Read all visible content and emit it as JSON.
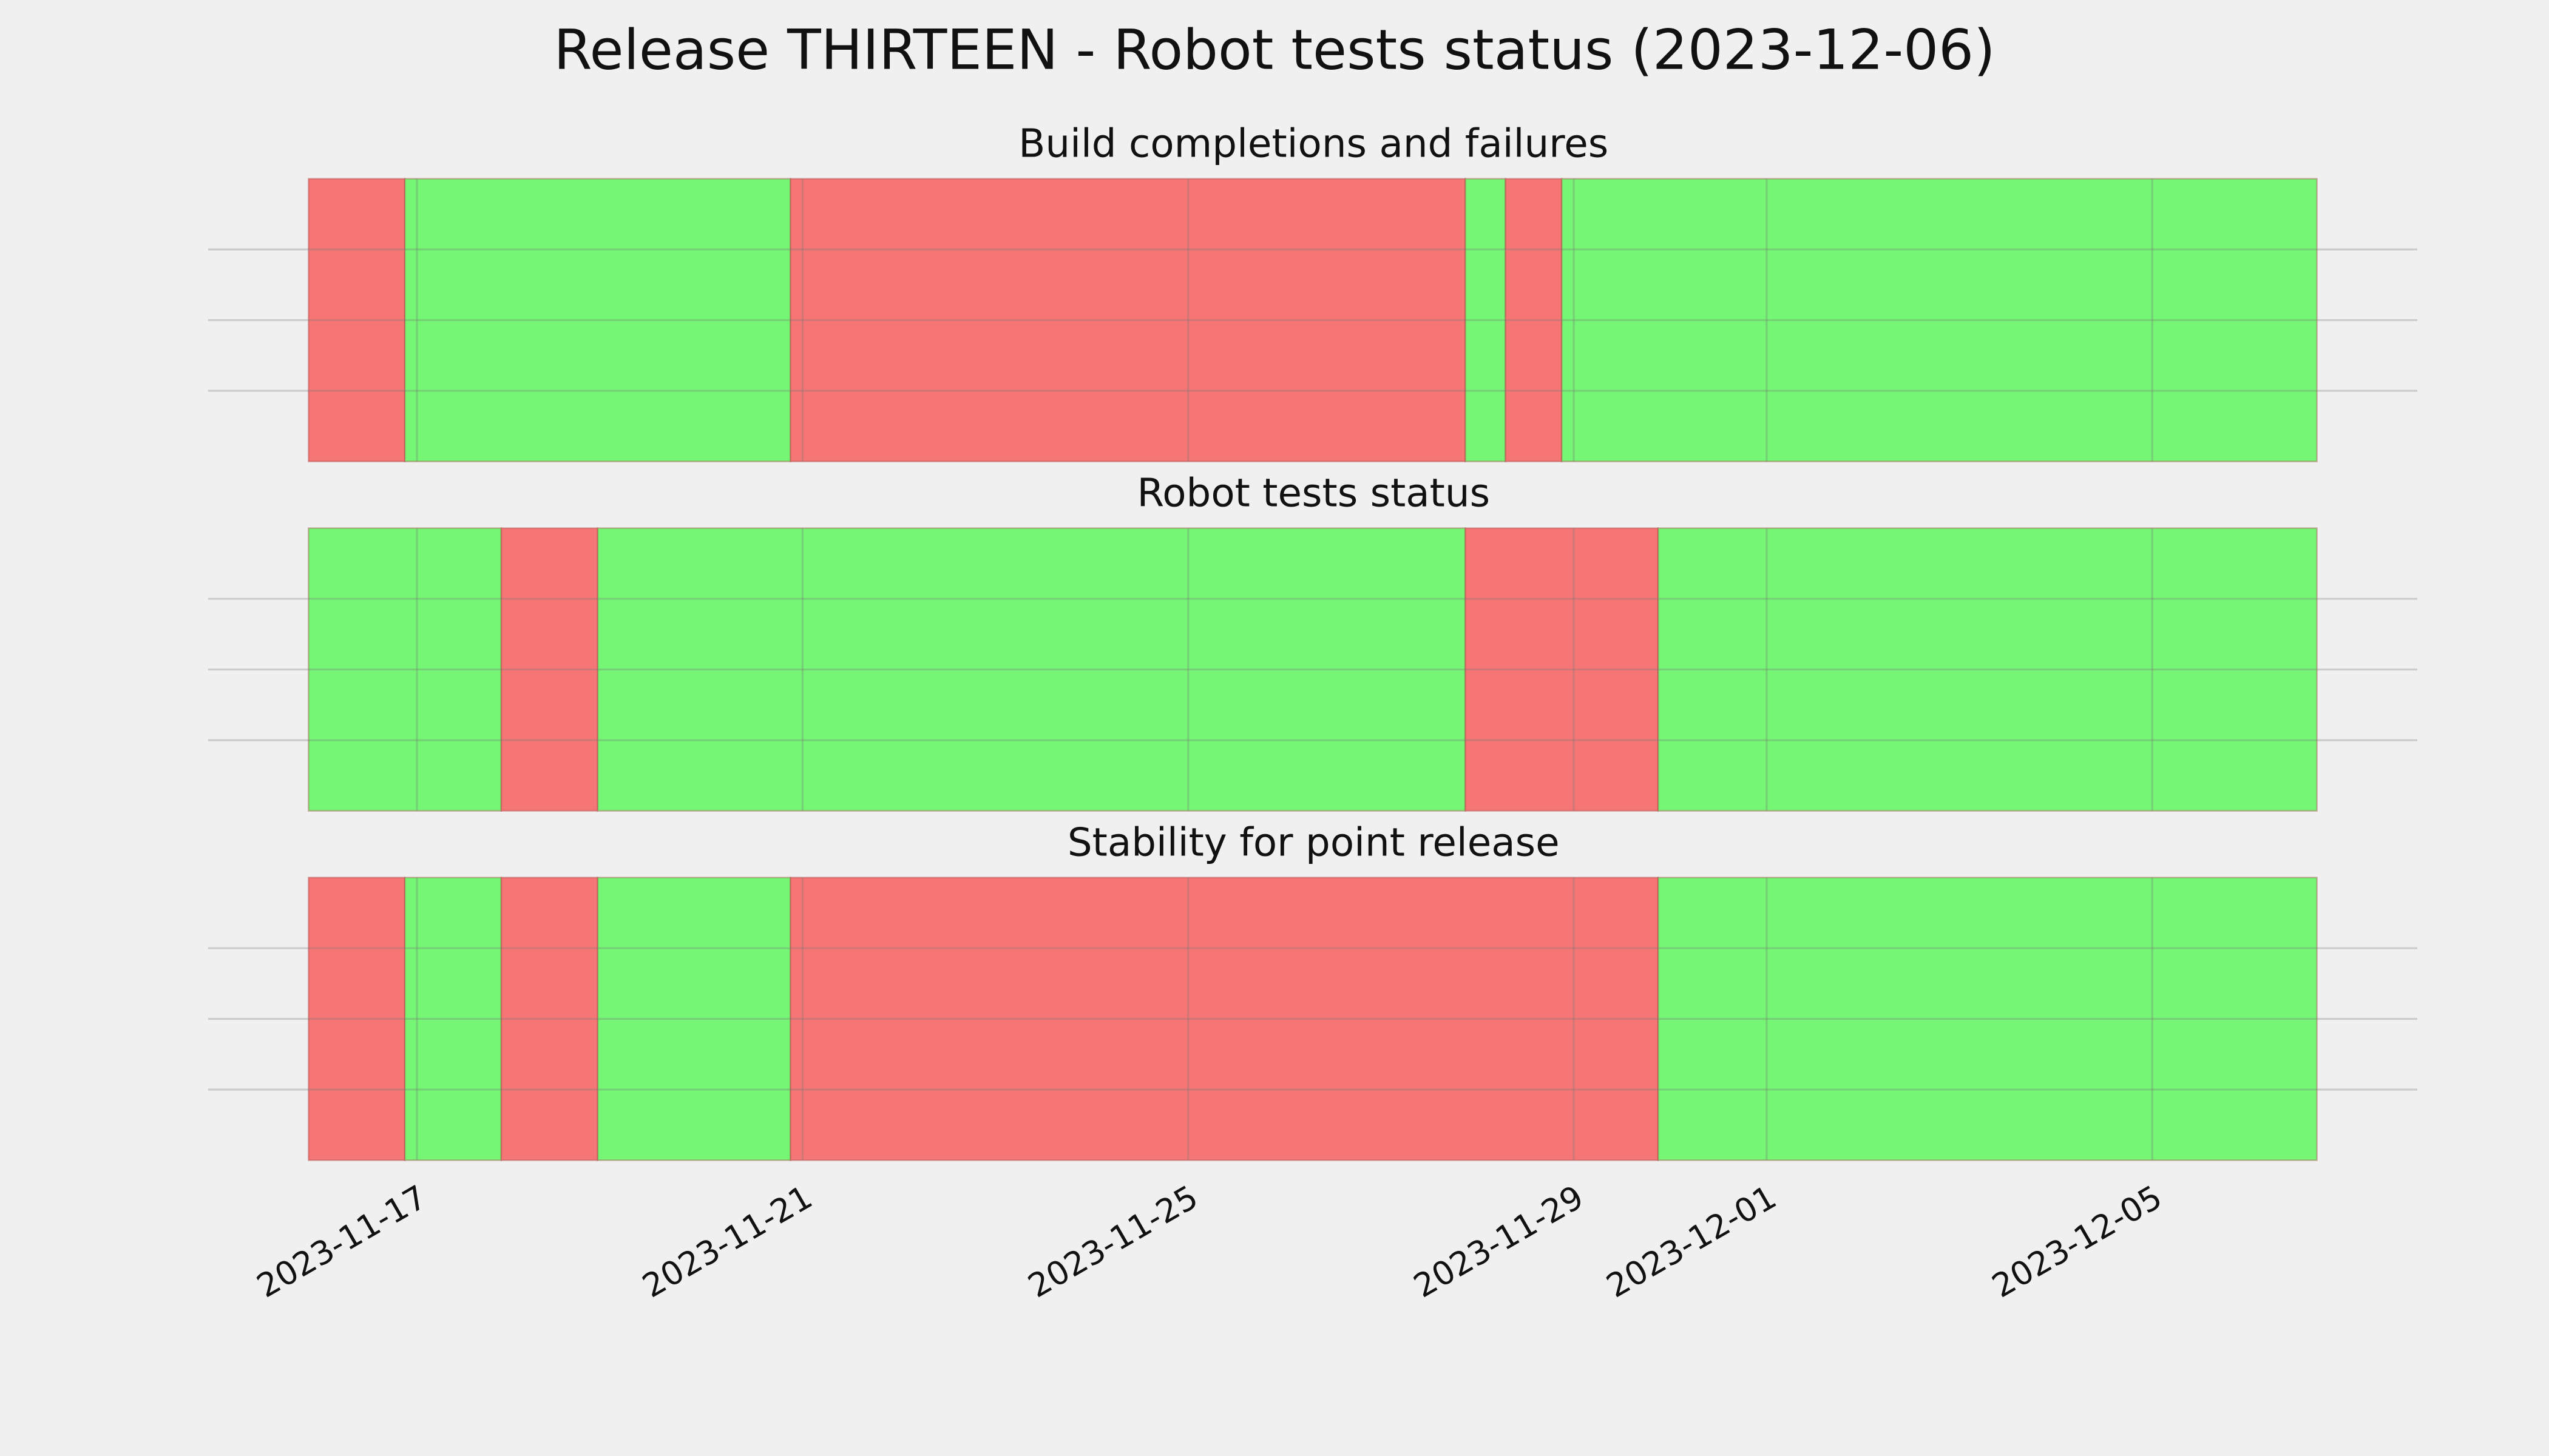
{
  "title": "Release THIRTEEN - Robot tests status (2023-12-06)",
  "chart_data": [
    {
      "type": "timeline",
      "title": "Build completions and failures",
      "xlim": [
        "2023-11-14T20:00",
        "2023-12-07T18:00"
      ],
      "ylim": [
        0,
        1
      ],
      "yticks": [
        0.25,
        0.5,
        0.75
      ],
      "xticks": [
        "2023-11-17",
        "2023-11-21",
        "2023-11-25",
        "2023-11-29",
        "2023-12-01",
        "2023-12-05"
      ],
      "grid": true,
      "spans": [
        {
          "start": "2023-11-15T21:00",
          "end": "2023-11-16T21:00",
          "color": "#f67676"
        },
        {
          "start": "2023-11-16T21:00",
          "end": "2023-11-20T21:00",
          "color": "#75f775"
        },
        {
          "start": "2023-11-20T21:00",
          "end": "2023-11-27T21:00",
          "color": "#f67676"
        },
        {
          "start": "2023-11-27T21:00",
          "end": "2023-11-28T07:00",
          "color": "#75f775"
        },
        {
          "start": "2023-11-28T07:00",
          "end": "2023-11-28T21:00",
          "color": "#f67676"
        },
        {
          "start": "2023-11-28T21:00",
          "end": "2023-12-06T17:00",
          "color": "#75f775"
        }
      ]
    },
    {
      "type": "timeline",
      "title": "Robot tests status",
      "xlim": [
        "2023-11-14T20:00",
        "2023-12-07T18:00"
      ],
      "ylim": [
        0,
        1
      ],
      "yticks": [
        0.25,
        0.5,
        0.75
      ],
      "xticks": [
        "2023-11-17",
        "2023-11-21",
        "2023-11-25",
        "2023-11-29",
        "2023-12-01",
        "2023-12-05"
      ],
      "grid": true,
      "spans": [
        {
          "start": "2023-11-15T21:00",
          "end": "2023-11-17T21:00",
          "color": "#75f775"
        },
        {
          "start": "2023-11-17T21:00",
          "end": "2023-11-18T21:00",
          "color": "#f67676"
        },
        {
          "start": "2023-11-18T21:00",
          "end": "2023-11-27T21:00",
          "color": "#75f775"
        },
        {
          "start": "2023-11-27T21:00",
          "end": "2023-11-29T21:00",
          "color": "#f67676"
        },
        {
          "start": "2023-11-29T21:00",
          "end": "2023-12-06T17:00",
          "color": "#75f775"
        }
      ]
    },
    {
      "type": "timeline",
      "title": "Stability for point release",
      "xlim": [
        "2023-11-14T20:00",
        "2023-12-07T18:00"
      ],
      "ylim": [
        0,
        1
      ],
      "yticks": [
        0.25,
        0.5,
        0.75
      ],
      "xticks": [
        "2023-11-17",
        "2023-11-21",
        "2023-11-25",
        "2023-11-29",
        "2023-12-01",
        "2023-12-05"
      ],
      "grid": true,
      "show_xtick_labels": true,
      "spans": [
        {
          "start": "2023-11-15T21:00",
          "end": "2023-11-16T21:00",
          "color": "#f67676"
        },
        {
          "start": "2023-11-16T21:00",
          "end": "2023-11-17T21:00",
          "color": "#75f775"
        },
        {
          "start": "2023-11-17T21:00",
          "end": "2023-11-18T21:00",
          "color": "#f67676"
        },
        {
          "start": "2023-11-18T21:00",
          "end": "2023-11-20T21:00",
          "color": "#75f775"
        },
        {
          "start": "2023-11-20T21:00",
          "end": "2023-11-29T21:00",
          "color": "#f67676"
        },
        {
          "start": "2023-11-29T21:00",
          "end": "2023-12-06T17:00",
          "color": "#75f775"
        }
      ]
    }
  ]
}
